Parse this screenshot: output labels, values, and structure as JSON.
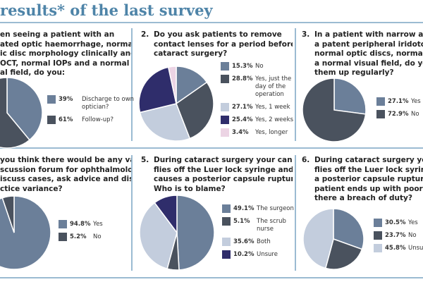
{
  "title": "results* of the last survey",
  "colors": {
    "slate": "#6b7f99",
    "dark": "#4a525e",
    "light": "#c3cddd",
    "navy": "#2f2d6b",
    "pink": "#ecd4e4",
    "accent": "#4e84a8"
  },
  "chart_data": [
    {
      "type": "pie",
      "question_lines": [
        "en seeing a patient with an",
        "ated optic haemorrhage, normal",
        "ic disc morphology clinically and",
        "OCT, normal IOPs and a normal",
        "al field, do you:"
      ],
      "slices": [
        {
          "label": "Discharge to own optician?",
          "value": 39,
          "display": "39%",
          "color": "#6b7f99"
        },
        {
          "label": "Follow-up?",
          "value": 61,
          "display": "61%",
          "color": "#4a525e"
        }
      ]
    },
    {
      "type": "pie",
      "number": "2.",
      "question_lines": [
        "Do you ask patients to remove",
        "contact lenses for a period before",
        "cataract surgery?"
      ],
      "slices": [
        {
          "label": "No",
          "value": 15.3,
          "display": "15.3%",
          "color": "#6b7f99"
        },
        {
          "label": "Yes, just the day of the operation",
          "value": 28.8,
          "display": "28.8%",
          "color": "#4a525e"
        },
        {
          "label": "Yes, 1 week",
          "value": 27.1,
          "display": "27.1%",
          "color": "#c3cddd"
        },
        {
          "label": "Yes, 2 weeks",
          "value": 25.4,
          "display": "25.4%",
          "color": "#2f2d6b"
        },
        {
          "label": "Yes, longer",
          "value": 3.4,
          "display": "3.4%",
          "color": "#ecd4e4"
        }
      ]
    },
    {
      "type": "pie",
      "number": "3.",
      "question_lines": [
        "In a patient with narrow angles a",
        "a patent peripheral iridotomy wi",
        "normal optic discs, normal IOPs a",
        "a normal visual field, do you follo",
        "them up regularly?"
      ],
      "slices": [
        {
          "label": "Yes",
          "value": 27.1,
          "display": "27.1%",
          "color": "#6b7f99"
        },
        {
          "label": "No",
          "value": 72.9,
          "display": "72.9%",
          "color": "#4a525e"
        }
      ]
    },
    {
      "type": "pie",
      "question_lines": [
        "you think there would be any value in",
        "scussion forum for ophthalmologists",
        "iscuss cases, ask advice and discuss",
        "ctice variance?"
      ],
      "slices": [
        {
          "label": "Yes",
          "value": 94.8,
          "display": "94.8%",
          "color": "#6b7f99"
        },
        {
          "label": "No",
          "value": 5.2,
          "display": "5.2%",
          "color": "#4a525e"
        }
      ]
    },
    {
      "type": "pie",
      "number": "5.",
      "question_lines": [
        "During cataract surgery your cannula",
        "flies off the Luer lock syringe and",
        "causes a posterior capsule rupture.",
        "Who is to blame?"
      ],
      "slices": [
        {
          "label": "The surgeon",
          "value": 49.1,
          "display": "49.1%",
          "color": "#6b7f99"
        },
        {
          "label": "The scrub nurse",
          "value": 5.1,
          "display": "5.1%",
          "color": "#4a525e"
        },
        {
          "label": "Both",
          "value": 35.6,
          "display": "35.6%",
          "color": "#c3cddd"
        },
        {
          "label": "Unsure",
          "value": 10.2,
          "display": "10.2%",
          "color": "#2f2d6b"
        }
      ]
    },
    {
      "type": "pie",
      "number": "6.",
      "question_lines": [
        "During cataract surgery your can",
        "flies off the Luer lock syringe and",
        "a posterior capsule rupture and t",
        "patient ends up with poor vision",
        "there a breach of duty?"
      ],
      "slices": [
        {
          "label": "Yes",
          "value": 30.5,
          "display": "30.5%",
          "color": "#6b7f99"
        },
        {
          "label": "No",
          "value": 23.7,
          "display": "23.7%",
          "color": "#4a525e"
        },
        {
          "label": "Unsure",
          "value": 45.8,
          "display": "45.8%",
          "color": "#c3cddd"
        }
      ]
    }
  ]
}
